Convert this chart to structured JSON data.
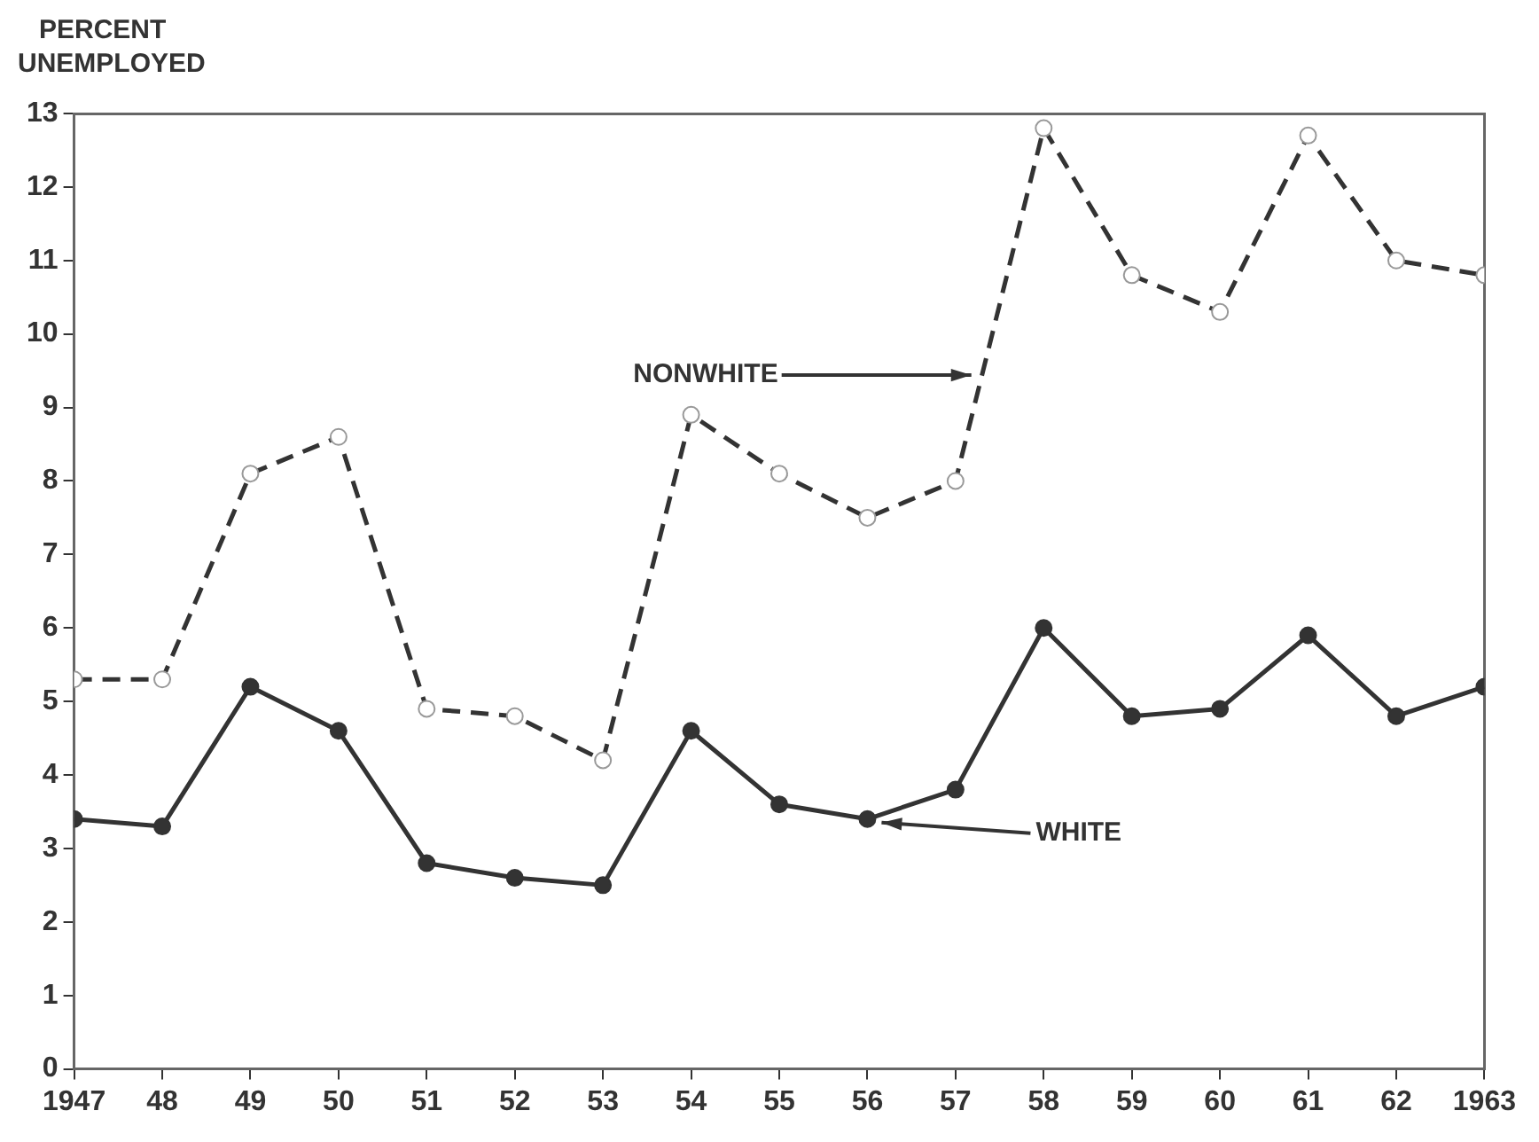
{
  "chart_data": {
    "type": "line",
    "ylabel": "PERCENT UNEMPLOYED",
    "x": [
      1947,
      1948,
      1949,
      1950,
      1951,
      1952,
      1953,
      1954,
      1955,
      1956,
      1957,
      1958,
      1959,
      1960,
      1961,
      1962,
      1963
    ],
    "series": [
      {
        "name": "NONWHITE",
        "color": "#333333",
        "line_style": "dashed",
        "marker": "circle",
        "values": [
          5.3,
          5.3,
          8.1,
          8.6,
          4.9,
          4.8,
          4.2,
          8.9,
          8.1,
          7.5,
          8.0,
          12.8,
          10.8,
          10.3,
          12.7,
          11.0,
          10.8
        ]
      },
      {
        "name": "WHITE",
        "color": "#333333",
        "line_style": "solid",
        "marker": "circle",
        "values": [
          3.4,
          3.3,
          5.2,
          4.6,
          2.8,
          2.6,
          2.5,
          4.6,
          3.6,
          3.4,
          3.8,
          6.0,
          4.8,
          4.9,
          5.9,
          4.8,
          5.2
        ]
      }
    ],
    "xlim": [
      1947,
      1963
    ],
    "xticks": [
      {
        "value": 1947,
        "label": "1947"
      },
      {
        "value": 1948,
        "label": "48"
      },
      {
        "value": 1949,
        "label": "49"
      },
      {
        "value": 1950,
        "label": "50"
      },
      {
        "value": 1951,
        "label": "51"
      },
      {
        "value": 1952,
        "label": "52"
      },
      {
        "value": 1953,
        "label": "53"
      },
      {
        "value": 1954,
        "label": "54"
      },
      {
        "value": 1955,
        "label": "55"
      },
      {
        "value": 1956,
        "label": "56"
      },
      {
        "value": 1957,
        "label": "57"
      },
      {
        "value": 1958,
        "label": "58"
      },
      {
        "value": 1959,
        "label": "59"
      },
      {
        "value": 1960,
        "label": "60"
      },
      {
        "value": 1961,
        "label": "61"
      },
      {
        "value": 1962,
        "label": "62"
      },
      {
        "value": 1963,
        "label": "1963"
      }
    ],
    "ylim": [
      0,
      13
    ],
    "yticks": [
      0,
      1,
      2,
      3,
      4,
      5,
      6,
      7,
      8,
      9,
      10,
      11,
      12,
      13
    ],
    "grid": false,
    "legend": false
  }
}
